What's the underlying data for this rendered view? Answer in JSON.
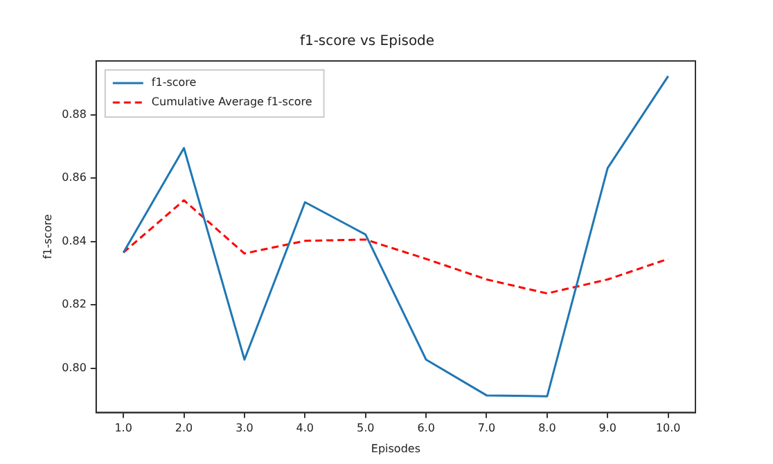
{
  "chart_data": {
    "type": "line",
    "title": "f1-score vs Episode",
    "xlabel": "Episodes",
    "ylabel": "f1-score",
    "x": [
      1,
      2,
      3,
      4,
      5,
      6,
      7,
      8,
      9,
      10
    ],
    "series": [
      {
        "name": "f1-score",
        "color": "#1f77b4",
        "line_style": "solid",
        "values": [
          0.8365,
          0.8695,
          0.8027,
          0.8524,
          0.8422,
          0.8027,
          0.7914,
          0.7911,
          0.8632,
          0.8922
        ]
      },
      {
        "name": "Cumulative Average f1-score",
        "color": "#ff0000",
        "line_style": "dashed",
        "values": [
          0.8365,
          0.853,
          0.8362,
          0.8402,
          0.8406,
          0.8345,
          0.828,
          0.8236,
          0.828,
          0.8345
        ]
      }
    ],
    "xlim": [
      0.55,
      10.45
    ],
    "xticks": [
      {
        "value": 1,
        "label": "1.0"
      },
      {
        "value": 2,
        "label": "2.0"
      },
      {
        "value": 3,
        "label": "3.0"
      },
      {
        "value": 4,
        "label": "4.0"
      },
      {
        "value": 5,
        "label": "5.0"
      },
      {
        "value": 6,
        "label": "6.0"
      },
      {
        "value": 7,
        "label": "7.0"
      },
      {
        "value": 8,
        "label": "8.0"
      },
      {
        "value": 9,
        "label": "9.0"
      },
      {
        "value": 10,
        "label": "10.0"
      }
    ],
    "ylim": [
      0.786,
      0.897
    ],
    "yticks": [
      {
        "value": 0.8,
        "label": "0.80"
      },
      {
        "value": 0.82,
        "label": "0.82"
      },
      {
        "value": 0.84,
        "label": "0.84"
      },
      {
        "value": 0.86,
        "label": "0.86"
      },
      {
        "value": 0.88,
        "label": "0.88"
      }
    ],
    "legend": "top left",
    "grid": false,
    "marker": "none"
  }
}
